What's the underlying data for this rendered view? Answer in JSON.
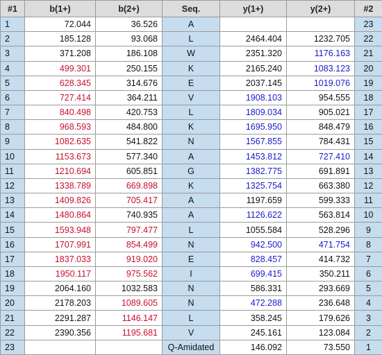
{
  "table": {
    "header": [
      "#1",
      "b(1+)",
      "b(2+)",
      "Seq.",
      "y(1+)",
      "y(2+)",
      "#2"
    ],
    "rows": [
      [
        "1",
        "72.044",
        "36.526",
        "A",
        null,
        null,
        "23"
      ],
      [
        "2",
        "185.128",
        "93.068",
        "L",
        "2464.404",
        "1232.705",
        "22"
      ],
      [
        "3",
        "371.208",
        "186.108",
        "W",
        "2351.320",
        {
          "text": "1176.163",
          "color": "#1a1acc"
        },
        "21"
      ],
      [
        "4",
        {
          "text": "499.301",
          "color": "#c8102e"
        },
        "250.155",
        "K",
        "2165.240",
        {
          "text": "1083.123",
          "color": "#1a1acc"
        },
        "20"
      ],
      [
        "5",
        {
          "text": "628.345",
          "color": "#c8102e"
        },
        "314.676",
        "E",
        "2037.145",
        {
          "text": "1019.076",
          "color": "#1a1acc"
        },
        "19"
      ],
      [
        "6",
        {
          "text": "727.414",
          "color": "#c8102e"
        },
        "364.211",
        "V",
        {
          "text": "1908.103",
          "color": "#1a1acc"
        },
        "954.555",
        "18"
      ],
      [
        "7",
        {
          "text": "840.498",
          "color": "#c8102e"
        },
        "420.753",
        "L",
        {
          "text": "1809.034",
          "color": "#1a1acc"
        },
        "905.021",
        "17"
      ],
      [
        "8",
        {
          "text": "968.593",
          "color": "#c8102e"
        },
        "484.800",
        "K",
        {
          "text": "1695.950",
          "color": "#1a1acc"
        },
        "848.479",
        "16"
      ],
      [
        "9",
        {
          "text": "1082.635",
          "color": "#c8102e"
        },
        "541.822",
        "N",
        {
          "text": "1567.855",
          "color": "#1a1acc"
        },
        "784.431",
        "15"
      ],
      [
        "10",
        {
          "text": "1153.673",
          "color": "#c8102e"
        },
        "577.340",
        "A",
        {
          "text": "1453.812",
          "color": "#1a1acc"
        },
        {
          "text": "727.410",
          "color": "#1a1acc"
        },
        "14"
      ],
      [
        "11",
        {
          "text": "1210.694",
          "color": "#c8102e"
        },
        "605.851",
        "G",
        {
          "text": "1382.775",
          "color": "#1a1acc"
        },
        "691.891",
        "13"
      ],
      [
        "12",
        {
          "text": "1338.789",
          "color": "#c8102e"
        },
        {
          "text": "669.898",
          "color": "#c8102e"
        },
        "K",
        {
          "text": "1325.754",
          "color": "#1a1acc"
        },
        "663.380",
        "12"
      ],
      [
        "13",
        {
          "text": "1409.826",
          "color": "#c8102e"
        },
        {
          "text": "705.417",
          "color": "#c8102e"
        },
        "A",
        "1197.659",
        "599.333",
        "11"
      ],
      [
        "14",
        {
          "text": "1480.864",
          "color": "#c8102e"
        },
        "740.935",
        "A",
        {
          "text": "1126.622",
          "color": "#1a1acc"
        },
        "563.814",
        "10"
      ],
      [
        "15",
        {
          "text": "1593.948",
          "color": "#c8102e"
        },
        {
          "text": "797.477",
          "color": "#c8102e"
        },
        "L",
        "1055.584",
        "528.296",
        "9"
      ],
      [
        "16",
        {
          "text": "1707.991",
          "color": "#c8102e"
        },
        {
          "text": "854.499",
          "color": "#c8102e"
        },
        "N",
        {
          "text": "942.500",
          "color": "#1a1acc"
        },
        {
          "text": "471.754",
          "color": "#1a1acc"
        },
        "8"
      ],
      [
        "17",
        {
          "text": "1837.033",
          "color": "#c8102e"
        },
        {
          "text": "919.020",
          "color": "#c8102e"
        },
        "E",
        {
          "text": "828.457",
          "color": "#1a1acc"
        },
        "414.732",
        "7"
      ],
      [
        "18",
        {
          "text": "1950.117",
          "color": "#c8102e"
        },
        {
          "text": "975.562",
          "color": "#c8102e"
        },
        "I",
        {
          "text": "699.415",
          "color": "#1a1acc"
        },
        "350.211",
        "6"
      ],
      [
        "19",
        "2064.160",
        "1032.583",
        "N",
        "586.331",
        "293.669",
        "5"
      ],
      [
        "20",
        "2178.203",
        {
          "text": "1089.605",
          "color": "#c8102e"
        },
        "N",
        {
          "text": "472.288",
          "color": "#1a1acc"
        },
        "236.648",
        "4"
      ],
      [
        "21",
        "2291.287",
        {
          "text": "1146.147",
          "color": "#c8102e"
        },
        "L",
        "358.245",
        "179.626",
        "3"
      ],
      [
        "22",
        "2390.356",
        {
          "text": "1195.681",
          "color": "#c8102e"
        },
        "V",
        "245.161",
        "123.084",
        "2"
      ],
      [
        "23",
        null,
        null,
        "Q-Amidated",
        "146.092",
        "73.550",
        "1"
      ]
    ]
  }
}
